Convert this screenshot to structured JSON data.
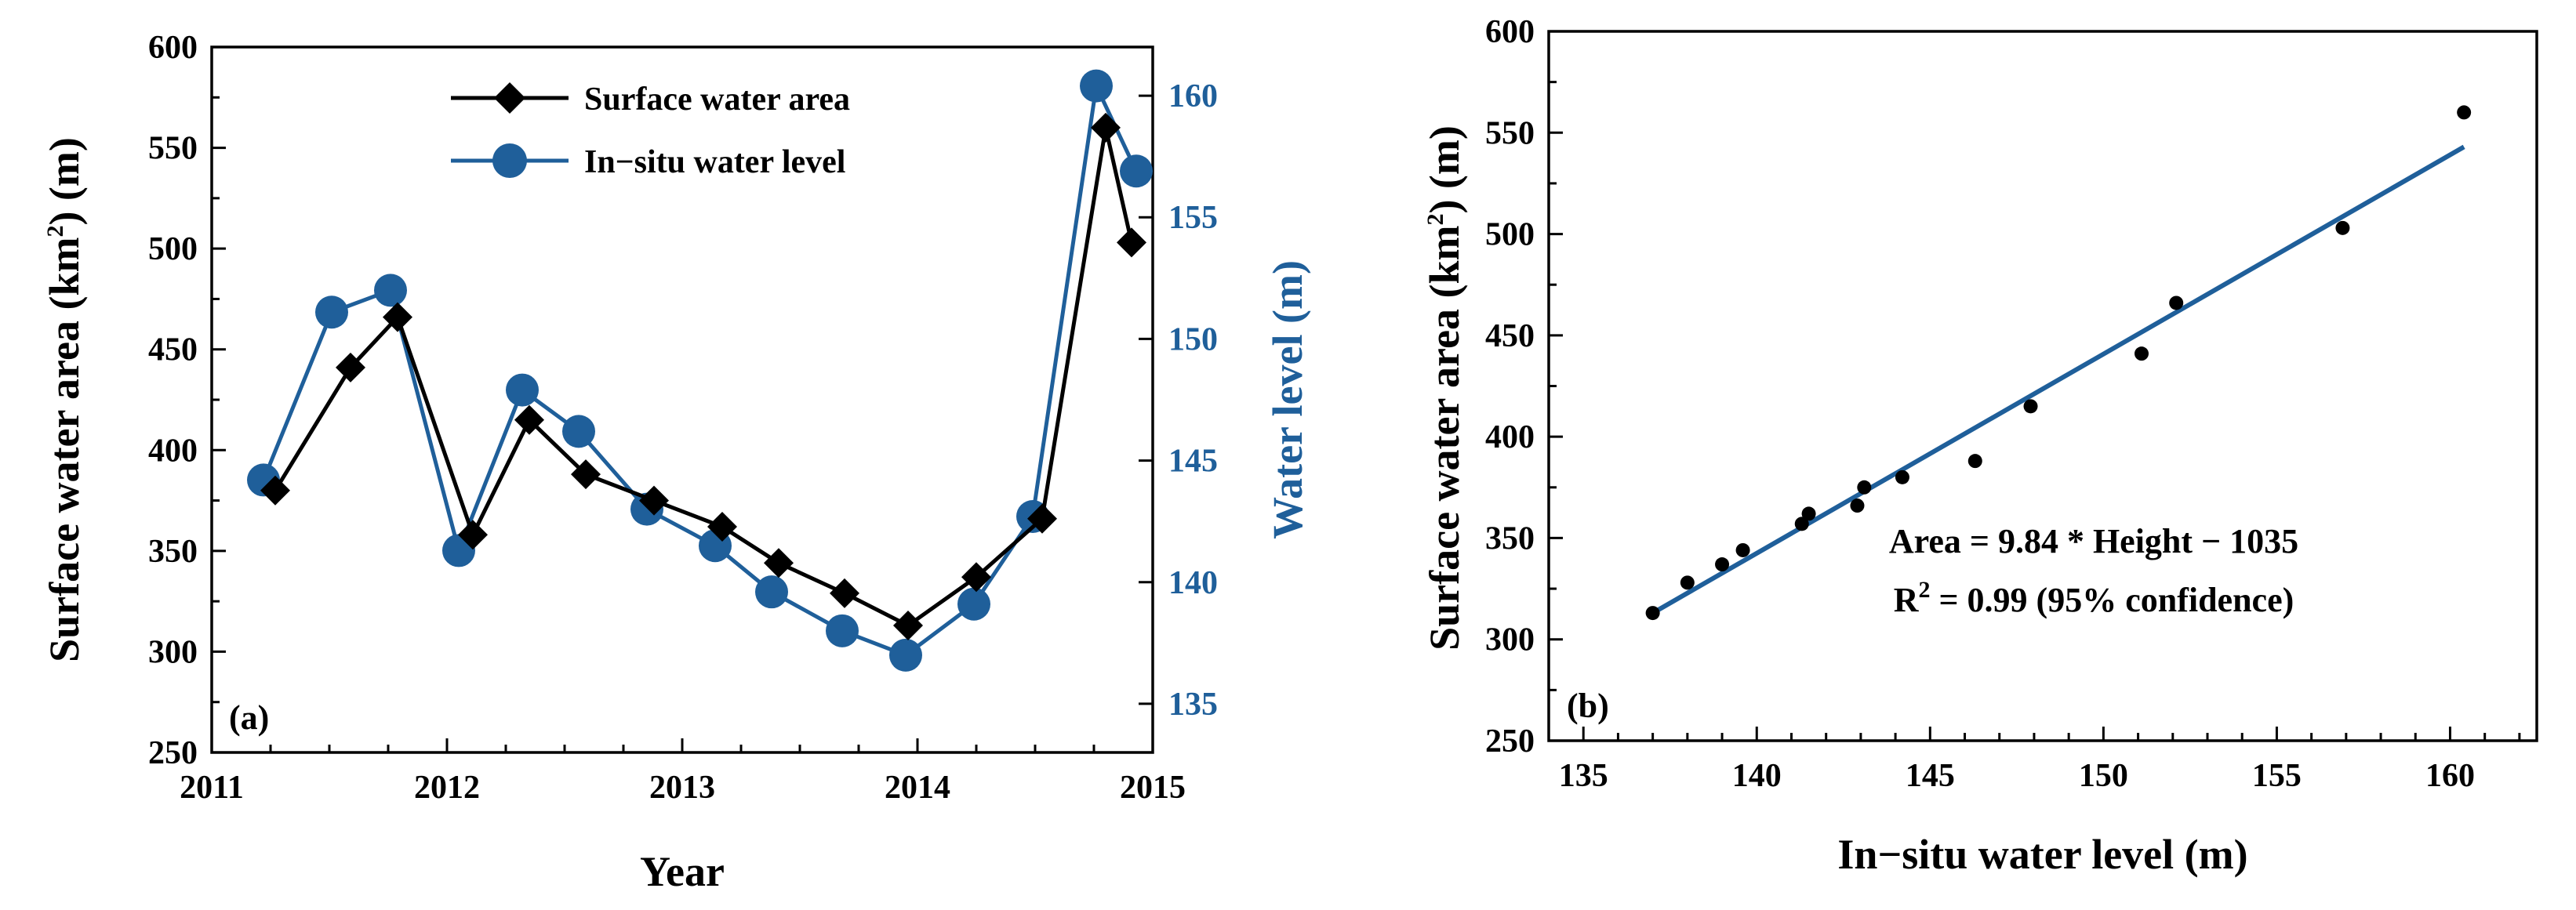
{
  "chart_data": [
    {
      "type": "line",
      "panel_label": "(a)",
      "xlabel": "Year",
      "ylabel_left": {
        "pre": "Surface water area (km",
        "sup": "2",
        "post": ") (m)"
      },
      "ylabel_right": "Water level (m)",
      "xlim": [
        2011,
        2015
      ],
      "ylim_left": [
        250,
        600
      ],
      "ylim_right": [
        133,
        162
      ],
      "x_ticks": [
        2011,
        2012,
        2013,
        2014,
        2015
      ],
      "y_ticks_left": [
        250,
        300,
        350,
        400,
        450,
        500,
        550,
        600
      ],
      "y_ticks_right": [
        135,
        140,
        145,
        150,
        155,
        160
      ],
      "legend_position": "top-center",
      "grid": false,
      "series": [
        {
          "name": "Surface water area",
          "axis": "left",
          "color": "#000000",
          "marker": "diamond",
          "x": [
            2011.27,
            2011.59,
            2011.79,
            2012.11,
            2012.35,
            2012.59,
            2012.88,
            2013.17,
            2013.41,
            2013.69,
            2013.96,
            2014.25,
            2014.53,
            2014.8,
            2014.91
          ],
          "y": [
            380,
            441,
            466,
            358,
            415,
            388,
            375,
            362,
            344,
            329,
            313,
            337,
            366,
            560,
            503
          ]
        },
        {
          "name": "In−situ water level",
          "axis": "right",
          "color": "#1f5f9a",
          "marker": "circle",
          "x": [
            2011.22,
            2011.51,
            2011.76,
            2012.05,
            2012.32,
            2012.56,
            2012.85,
            2013.14,
            2013.38,
            2013.68,
            2013.95,
            2014.24,
            2014.49,
            2014.76,
            2014.93
          ],
          "y": [
            144.2,
            151.1,
            152.0,
            141.3,
            147.9,
            146.2,
            143.0,
            141.5,
            139.6,
            138.0,
            137.0,
            139.1,
            142.7,
            160.4,
            156.9
          ]
        }
      ]
    },
    {
      "type": "scatter",
      "panel_label": "(b)",
      "xlabel": "In−situ water level (m)",
      "ylabel": {
        "pre": "Surface water area (km",
        "sup": "2",
        "post": ") (m)"
      },
      "xlim": [
        134,
        162.5
      ],
      "ylim": [
        250,
        600
      ],
      "x_ticks": [
        135,
        140,
        145,
        150,
        155,
        160
      ],
      "y_ticks": [
        250,
        300,
        350,
        400,
        450,
        500,
        550,
        600
      ],
      "grid": false,
      "x": [
        137.0,
        138.0,
        139.0,
        139.6,
        141.3,
        141.5,
        142.9,
        143.1,
        144.2,
        146.3,
        147.9,
        151.1,
        152.1,
        156.9,
        160.4
      ],
      "y": [
        313,
        328,
        337,
        344,
        357,
        362,
        366,
        375,
        380,
        388,
        415,
        441,
        466,
        503,
        560
      ],
      "fit_line": {
        "x": [
          137.0,
          160.4
        ],
        "y": [
          313,
          543
        ],
        "color": "#1f5f9a"
      },
      "annotation_line1": "Area = 9.84 * Height − 1035",
      "annotation_line2": {
        "pre": "R",
        "sup": "2",
        "post": " = 0.99 (95% confidence)"
      }
    }
  ]
}
